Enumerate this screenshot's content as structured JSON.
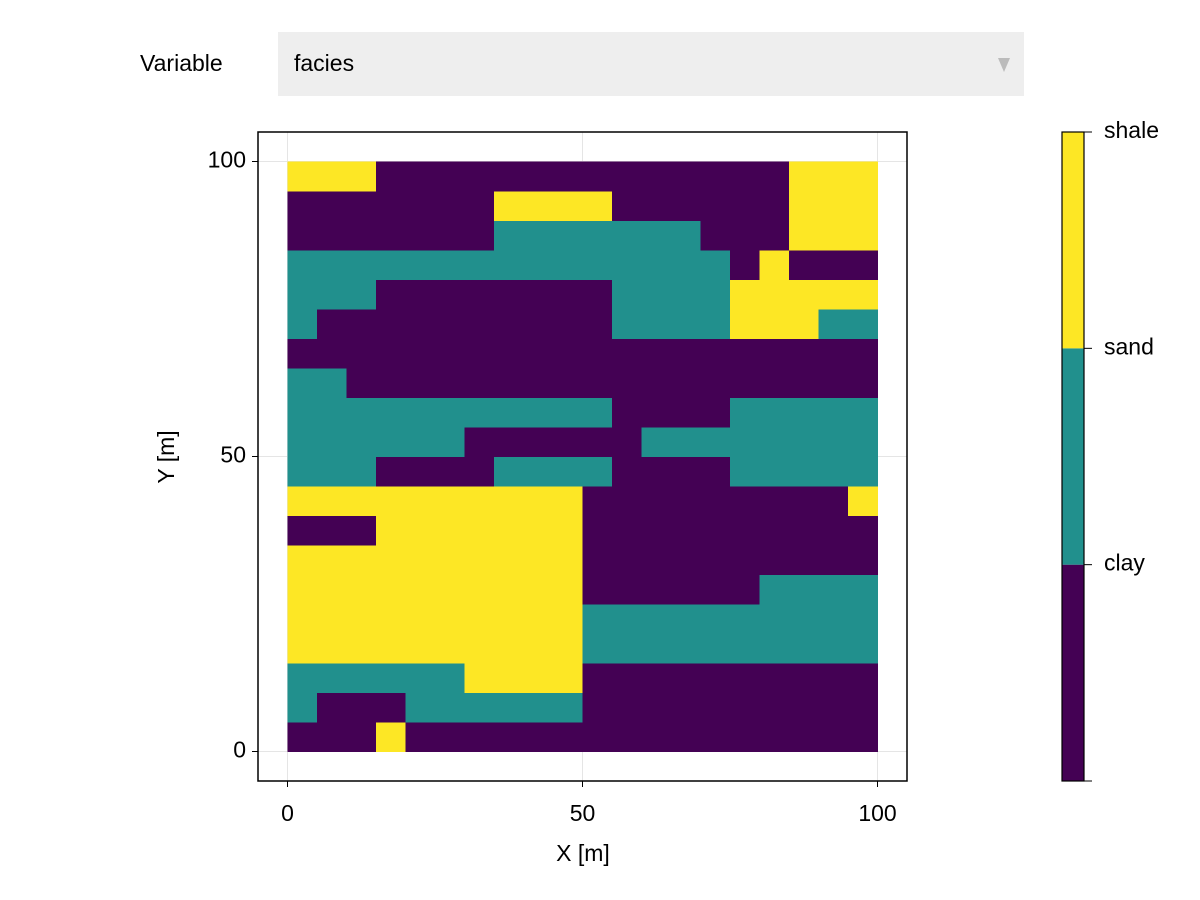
{
  "controls": {
    "label": "Variable",
    "selected": "facies"
  },
  "chart_data": {
    "type": "heatmap",
    "x_label": "X [m]",
    "y_label": "Y [m]",
    "xlim": [
      -5,
      105
    ],
    "ylim": [
      -5,
      105
    ],
    "xticks": [
      0,
      50,
      100
    ],
    "yticks": [
      0,
      50,
      100
    ],
    "grid": true,
    "x": [
      0,
      5,
      10,
      15,
      20,
      25,
      30,
      35,
      40,
      45,
      50,
      55,
      60,
      65,
      70,
      75,
      80,
      85,
      90,
      95,
      100
    ],
    "y": [
      0,
      5,
      10,
      15,
      20,
      25,
      30,
      35,
      40,
      45,
      50,
      55,
      60,
      65,
      70,
      75,
      80,
      85,
      90,
      95,
      100
    ],
    "z": [
      [
        0,
        0,
        0,
        2,
        0,
        0,
        0,
        0,
        0,
        0,
        0,
        0,
        0,
        0,
        0,
        0,
        0,
        0,
        0,
        0
      ],
      [
        1,
        0,
        0,
        0,
        1,
        1,
        1,
        1,
        1,
        1,
        0,
        0,
        0,
        0,
        0,
        0,
        0,
        0,
        0,
        0
      ],
      [
        1,
        1,
        1,
        1,
        1,
        1,
        2,
        2,
        2,
        2,
        0,
        0,
        0,
        0,
        0,
        0,
        0,
        0,
        0,
        0
      ],
      [
        2,
        2,
        2,
        2,
        2,
        2,
        2,
        2,
        2,
        2,
        1,
        1,
        1,
        1,
        1,
        1,
        1,
        1,
        1,
        1
      ],
      [
        2,
        2,
        2,
        2,
        2,
        2,
        2,
        2,
        2,
        2,
        1,
        1,
        1,
        1,
        1,
        1,
        1,
        1,
        1,
        1
      ],
      [
        2,
        2,
        2,
        2,
        2,
        2,
        2,
        2,
        2,
        2,
        0,
        0,
        0,
        0,
        0,
        0,
        1,
        1,
        1,
        1
      ],
      [
        2,
        2,
        2,
        2,
        2,
        2,
        2,
        2,
        2,
        2,
        0,
        0,
        0,
        0,
        0,
        0,
        0,
        0,
        0,
        0
      ],
      [
        0,
        0,
        0,
        2,
        2,
        2,
        2,
        2,
        2,
        2,
        0,
        0,
        0,
        0,
        0,
        0,
        0,
        0,
        0,
        0
      ],
      [
        2,
        2,
        2,
        2,
        2,
        2,
        2,
        2,
        2,
        2,
        0,
        0,
        0,
        0,
        0,
        0,
        0,
        0,
        0,
        2
      ],
      [
        1,
        1,
        1,
        0,
        0,
        0,
        0,
        1,
        1,
        1,
        1,
        0,
        0,
        0,
        0,
        1,
        1,
        1,
        1,
        1
      ],
      [
        1,
        1,
        1,
        1,
        1,
        1,
        0,
        0,
        0,
        0,
        0,
        0,
        1,
        1,
        1,
        1,
        1,
        1,
        1,
        1
      ],
      [
        1,
        1,
        1,
        1,
        1,
        1,
        1,
        1,
        1,
        1,
        1,
        0,
        0,
        0,
        0,
        1,
        1,
        1,
        1,
        1
      ],
      [
        1,
        1,
        0,
        0,
        0,
        0,
        0,
        0,
        0,
        0,
        0,
        0,
        0,
        0,
        0,
        0,
        0,
        0,
        0,
        0
      ],
      [
        0,
        0,
        0,
        0,
        0,
        0,
        0,
        0,
        0,
        0,
        0,
        0,
        0,
        0,
        0,
        0,
        0,
        0,
        0,
        0
      ],
      [
        1,
        0,
        0,
        0,
        0,
        0,
        0,
        0,
        0,
        0,
        0,
        1,
        1,
        1,
        1,
        2,
        2,
        2,
        1,
        1
      ],
      [
        1,
        1,
        1,
        0,
        0,
        0,
        0,
        0,
        0,
        0,
        0,
        1,
        1,
        1,
        1,
        2,
        2,
        2,
        2,
        2
      ],
      [
        1,
        1,
        1,
        1,
        1,
        1,
        1,
        1,
        1,
        1,
        1,
        1,
        1,
        1,
        1,
        0,
        2,
        0,
        0,
        0
      ],
      [
        0,
        0,
        0,
        0,
        0,
        0,
        0,
        1,
        1,
        1,
        1,
        1,
        1,
        1,
        0,
        0,
        0,
        2,
        2,
        2
      ],
      [
        0,
        0,
        0,
        0,
        0,
        0,
        0,
        2,
        2,
        2,
        2,
        0,
        0,
        0,
        0,
        0,
        0,
        2,
        2,
        2
      ],
      [
        2,
        2,
        2,
        0,
        0,
        0,
        0,
        0,
        0,
        0,
        0,
        0,
        0,
        0,
        0,
        0,
        0,
        2,
        2,
        2
      ]
    ],
    "colors": [
      "#440154",
      "#21908d",
      "#fde725"
    ],
    "colorbar": {
      "lim": [
        0,
        3
      ],
      "ticks": [
        {
          "value": 1,
          "label": "clay"
        },
        {
          "value": 2,
          "label": "sand"
        },
        {
          "value": 3,
          "label": "shale"
        }
      ]
    }
  }
}
